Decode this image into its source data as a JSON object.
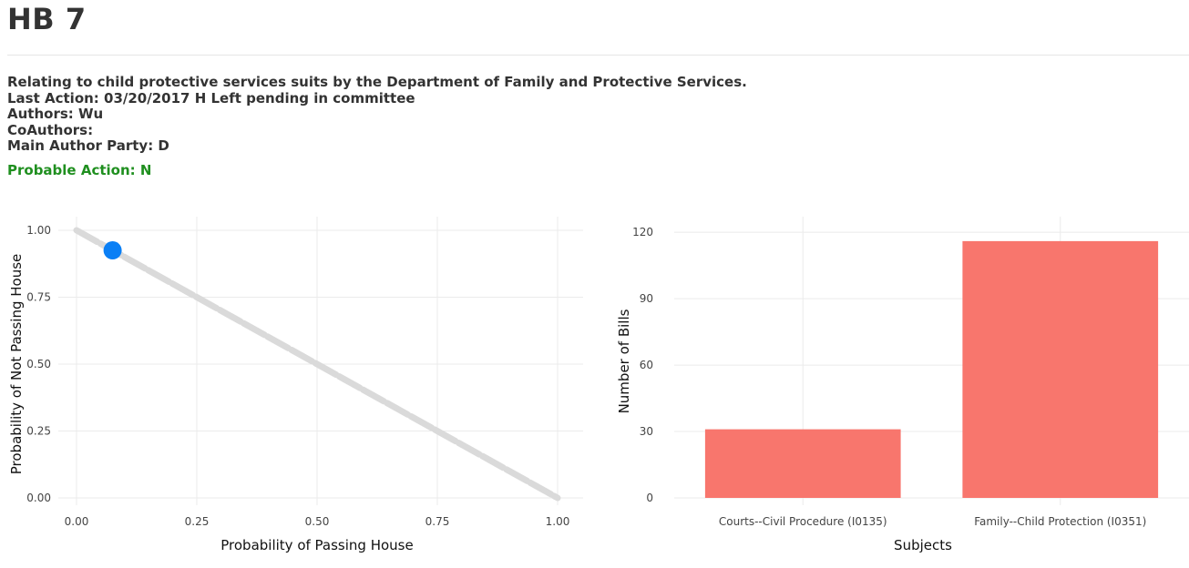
{
  "header": {
    "title": "HB 7",
    "description": "Relating to child protective services suits by the Department of Family and Protective Services.",
    "last_action": "Last Action: 03/20/2017 H Left pending in committee",
    "authors": "Authors: Wu",
    "coauthors": "CoAuthors:",
    "party": "Main Author Party: D",
    "probable_action": "Probable Action: N"
  },
  "colors": {
    "probable_action": "#1f8f1f",
    "scatter_line": "#dadada",
    "scatter_point": "#0a7ff5",
    "bar": "#f8766d",
    "grid": "#ebebeb"
  },
  "chart_data": [
    {
      "type": "scatter",
      "xlabel": "Probability of Passing House",
      "ylabel": "Probability of Not Passing House",
      "xlim": [
        0,
        1
      ],
      "ylim": [
        0,
        1
      ],
      "x_ticks": [
        "0.00",
        "0.25",
        "0.50",
        "0.75",
        "1.00"
      ],
      "y_ticks": [
        "0.00",
        "0.25",
        "0.50",
        "0.75",
        "1.00"
      ],
      "grid": true,
      "series": [
        {
          "role": "all bills",
          "x_range": [
            0,
            1
          ],
          "relation": "y = 1 - x"
        },
        {
          "role": "this bill",
          "x": [
            0.075
          ],
          "y": [
            0.925
          ]
        }
      ]
    },
    {
      "type": "bar",
      "xlabel": "Subjects",
      "ylabel": "Number of Bills",
      "categories": [
        "Courts--Civil Procedure (I0135)",
        "Family--Child Protection (I0351)"
      ],
      "values": [
        31,
        116
      ],
      "ylim": [
        0,
        125
      ],
      "y_ticks": [
        "0",
        "30",
        "60",
        "90",
        "120"
      ],
      "grid": true
    }
  ]
}
